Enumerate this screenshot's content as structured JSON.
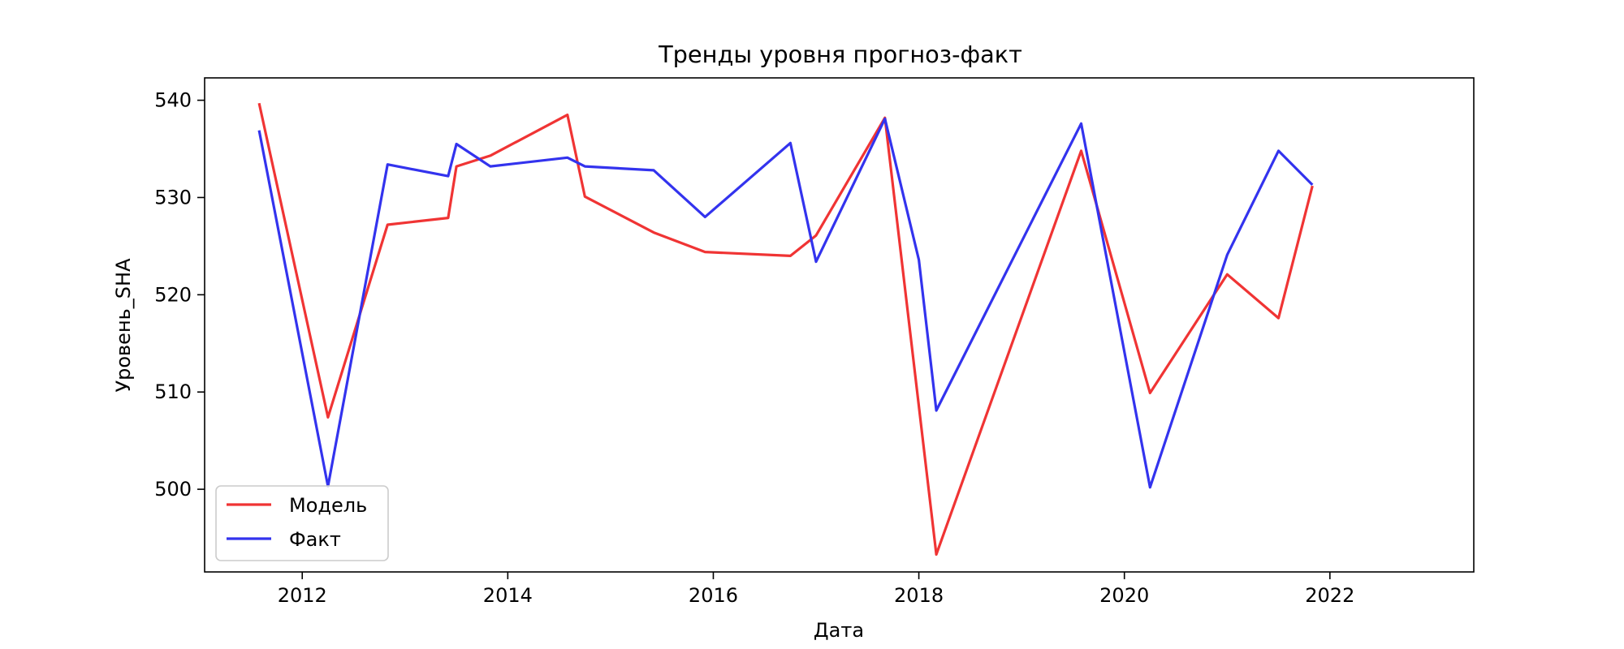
{
  "chart_data": {
    "type": "line",
    "title": "Тренды уровня прогноз-факт",
    "xlabel": "Дата",
    "ylabel": "Уровень_SHA",
    "xlim": [
      2011.05,
      2023.4
    ],
    "ylim": [
      491.5,
      542.3
    ],
    "xticks": [
      2012,
      2014,
      2016,
      2018,
      2020,
      2022
    ],
    "yticks": [
      500,
      510,
      520,
      530,
      540
    ],
    "grid": false,
    "legend_position": "lower-left",
    "series": [
      {
        "name": "Модель",
        "color": "#f03434",
        "x": [
          2011.58,
          2012.25,
          2012.83,
          2013.42,
          2013.5,
          2013.83,
          2014.58,
          2014.75,
          2015.42,
          2015.92,
          2016.75,
          2017.0,
          2017.67,
          2018.17,
          2019.58,
          2020.25,
          2021.0,
          2021.5,
          2021.83
        ],
        "y": [
          539.7,
          507.4,
          527.2,
          527.9,
          533.2,
          534.3,
          538.5,
          530.1,
          526.4,
          524.4,
          524.0,
          526.1,
          538.2,
          493.3,
          534.8,
          509.9,
          522.1,
          517.6,
          531.2
        ]
      },
      {
        "name": "Факт",
        "color": "#3333ee",
        "x": [
          2011.58,
          2012.25,
          2012.83,
          2013.42,
          2013.5,
          2013.83,
          2014.58,
          2014.75,
          2015.42,
          2015.92,
          2016.75,
          2017.0,
          2017.67,
          2018.0,
          2018.17,
          2019.58,
          2020.25,
          2021.0,
          2021.5,
          2021.83
        ],
        "y": [
          536.9,
          500.3,
          533.4,
          532.2,
          535.5,
          533.2,
          534.1,
          533.2,
          532.8,
          528.0,
          535.6,
          523.4,
          538.1,
          523.6,
          508.1,
          537.6,
          500.2,
          524.1,
          534.8,
          531.3
        ]
      }
    ]
  }
}
